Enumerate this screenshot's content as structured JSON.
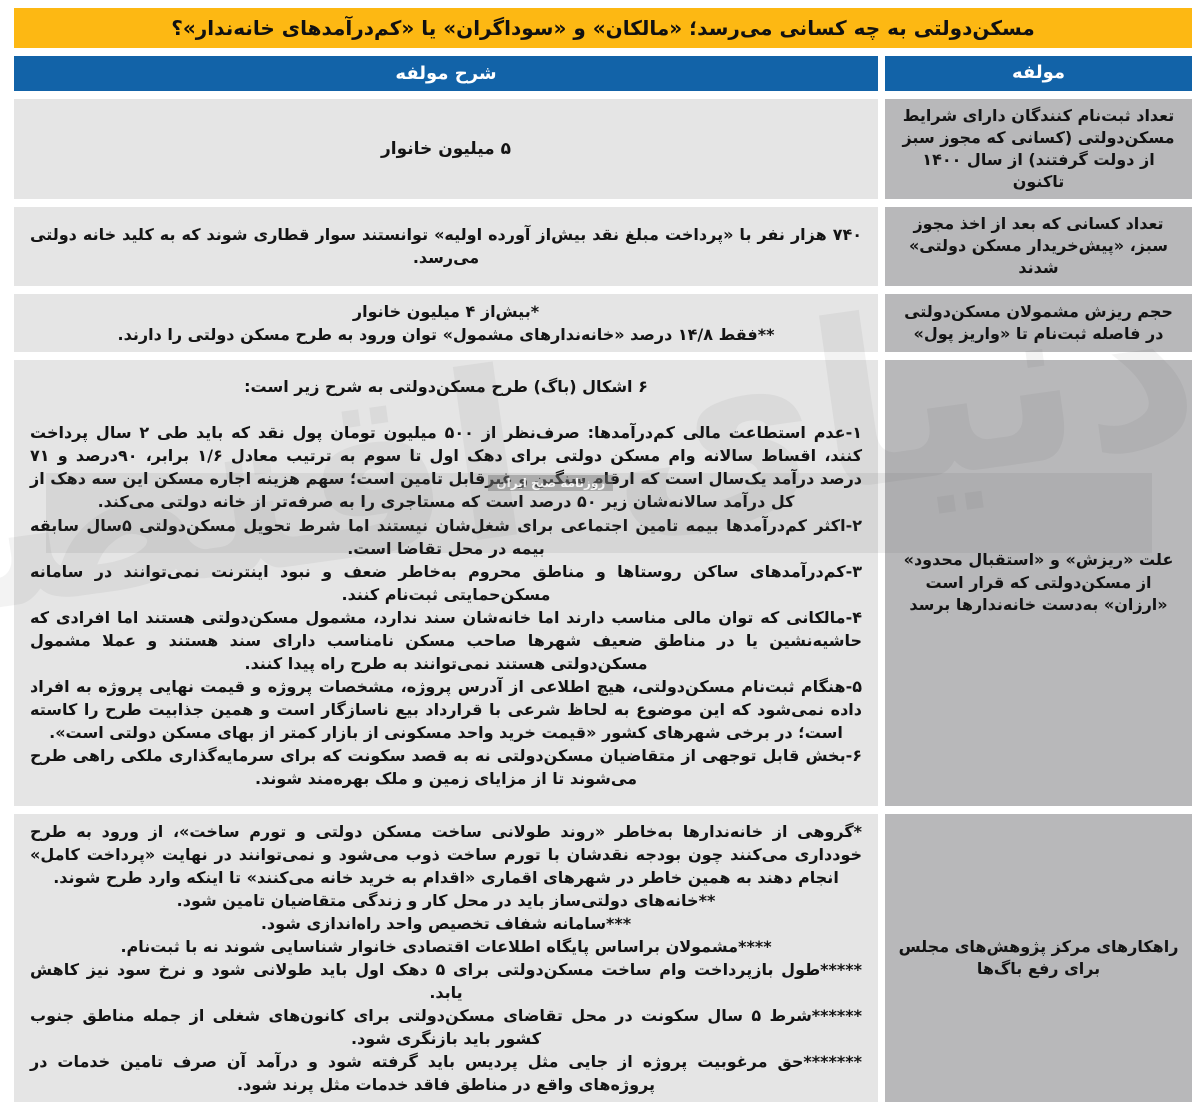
{
  "title": "مسکن‌دولتی به چه کسانی می‌رسد؛ «مالکان» و «سوداگران» یا «کم‌درآمدهای خانه‌ندار»؟",
  "header": {
    "description_column": "شرح مولفه",
    "component_column": "مولفه"
  },
  "colors": {
    "title_yellow": "#FDB813",
    "header_blue": "#1263A8",
    "description_cell_gray": "#E5E5E5",
    "component_cell_gray": "#B8B8BA",
    "text_color": "#141414"
  },
  "watermark": {
    "text": "دنیای اقتصاد",
    "subtext": "روزنامه صبح ایران"
  },
  "rows": [
    {
      "component": "تعداد ثبت‌نام کنندگان دارای شرایط مسکن‌دولتی (کسانی که مجوز سبز از دولت گرفتند) از سال ۱۴۰۰ تاکنون",
      "description": [
        "۵ میلیون خانوار"
      ]
    },
    {
      "component": "تعداد کسانی که بعد از اخذ مجوز سبز، «پیش‌خریدار مسکن دولتی» شدند",
      "description": [
        "۷۴۰ هزار نفر با «پرداخت مبلغ نقد بیش‌از آورده اولیه» توانستند سوار قطاری شوند که به کلید خانه دولتی می‌رسد."
      ]
    },
    {
      "component": "حجم ریزش مشمولان مسکن‌دولتی در فاصله ثبت‌نام تا «واریز پول»",
      "description": [
        "*بیش‌از ۴ میلیون خانوار",
        "**فقط ۱۴/۸ درصد «خانه‌ندارهای مشمول» توان ورود به طرح مسکن دولتی را دارند."
      ]
    },
    {
      "component": "علت «ریزش» و «استقبال محدود» از مسکن‌دولتی که قرار است «ارزان» به‌دست خانه‌ندارها برسد",
      "description": [
        "۶ اشکال (باگ) طرح مسکن‌دولتی به شرح زیر است:",
        "",
        "۱-عدم استطاعت مالی کم‌درآمدها: صرف‌نظر از ۵۰۰ میلیون تومان پول نقد که باید طی ۲ سال پرداخت کنند، اقساط سالانه وام مسکن دولتی برای دهک اول تا سوم به ترتیب معادل ۱/۶ برابر، ۹۰درصد و ۷۱ درصد درآمد یک‌سال است که ارقام سنگین و غیرقابل تامین است؛ سهم هزینه اجاره مسکن این سه دهک از کل درآمد سالانه‌شان زیر ۵۰ درصد است که مستاجری را به صرفه‌تر از خانه دولتی می‌کند.",
        "۲-اکثر کم‌درآمدها بیمه تامین اجتماعی برای شغل‌شان نیستند اما شرط تحویل مسکن‌دولتی ۵سال سابقه بیمه در محل تقاضا است.",
        "۳-کم‌درآمدهای ساکن روستاها و مناطق محروم به‌خاطر ضعف و نبود اینترنت نمی‌توانند در سامانه مسکن‌حمایتی ثبت‌نام کنند.",
        "۴-مالکانی که توان مالی مناسب دارند اما خانه‌شان سند ندارد، مشمول مسکن‌دولتی هستند اما افرادی که حاشیه‌نشین یا در مناطق ضعیف شهرها صاحب مسکن نامناسب دارای سند هستند و عملا مشمول مسکن‌دولتی هستند نمی‌توانند به طرح راه پیدا کنند.",
        "۵-هنگام ثبت‌نام مسکن‌دولتی، هیچ اطلاعی از آدرس پروژه، مشخصات پروژه و قیمت نهایی پروژه به افراد داده نمی‌شود که این موضوع به لحاظ شرعی با قرارداد بیع ناسازگار است و همین جذابیت طرح را کاسته است؛ در برخی شهرهای کشور «قیمت خرید واحد مسکونی از بازار کمتر از بهای مسکن دولتی است».",
        "۶-بخش قابل توجهی از متقاضیان مسکن‌دولتی نه به قصد سکونت که برای سرمایه‌گذاری ملکی راهی طرح می‌شوند تا از مزایای زمین و ملک بهره‌مند شوند."
      ]
    },
    {
      "component": "راهکارهای مرکز پژوهش‌های مجلس برای رفع باگ‌ها",
      "description": [
        "*گروهی از خانه‌ندارها به‌خاطر «روند طولانی ساخت مسکن دولتی و تورم ساخت»، از ورود به طرح خودداری می‌کنند چون بودجه نقدشان با تورم ساخت ذوب می‌شود و نمی‌توانند در نهایت «پرداخت کامل» انجام دهند به همین خاطر در شهرهای اقماری «اقدام به خرید خانه می‌کنند» تا اینکه وارد طرح شوند.",
        "**خانه‌های دولتی‌ساز باید در محل کار و زندگی متقاضیان تامین شود.",
        "***سامانه شفاف تخصیص واحد راه‌اندازی شود.",
        "****مشمولان براساس پایگاه اطلاعات اقتصادی خانوار شناسایی شوند نه با ثبت‌نام.",
        "*****طول بازپرداخت وام ساخت مسکن‌دولتی برای ۵ دهک اول باید طولانی شود و نرخ سود نیز کاهش یابد.",
        "******شرط ۵ سال سکونت در محل تقاضای مسکن‌دولتی برای کانون‌های شغلی از جمله مناطق جنوب کشور باید بازنگری شود.",
        "*******حق مرغوبیت پروژه از جایی مثل پردیس باید گرفته شود و درآمد آن صرف تامین خدمات در پروژه‌های واقع در مناطق فاقد خدمات مثل پرند شود."
      ]
    }
  ]
}
